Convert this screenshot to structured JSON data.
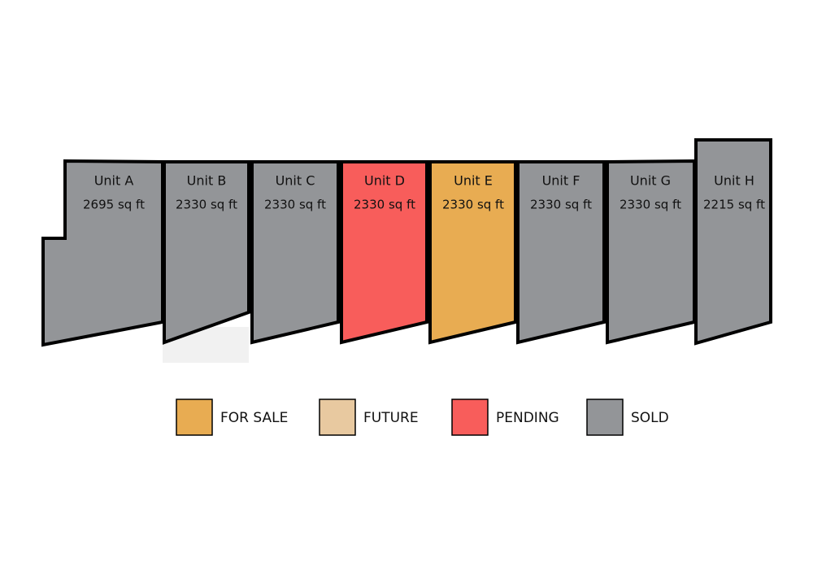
{
  "units": [
    {
      "label": "Unit A",
      "area": "2695 sq ft",
      "color": "#939598"
    },
    {
      "label": "Unit B",
      "area": "2330 sq ft",
      "color": "#939598"
    },
    {
      "label": "Unit C",
      "area": "2330 sq ft",
      "color": "#939598"
    },
    {
      "label": "Unit D",
      "area": "2330 sq ft",
      "color": "#f85d5b"
    },
    {
      "label": "Unit E",
      "area": "2330 sq ft",
      "color": "#e8ac52"
    },
    {
      "label": "Unit F",
      "area": "2330 sq ft",
      "color": "#939598"
    },
    {
      "label": "Unit G",
      "area": "2330 sq ft",
      "color": "#939598"
    },
    {
      "label": "Unit H",
      "area": "2215 sq ft",
      "color": "#939598"
    }
  ],
  "legend": [
    {
      "label": "FOR SALE",
      "color": "#e8ac52"
    },
    {
      "label": "FUTURE",
      "color": "#e8c9a0"
    },
    {
      "label": "PENDING",
      "color": "#f85d5b"
    },
    {
      "label": "SOLD",
      "color": "#939598"
    }
  ]
}
